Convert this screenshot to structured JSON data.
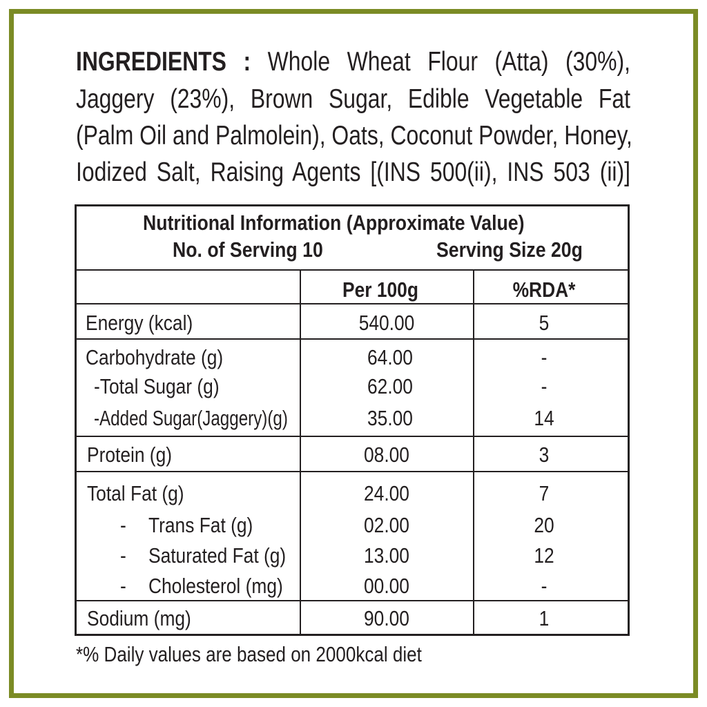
{
  "ingredients": {
    "label": "INGREDIENTS :",
    "lines": [
      "Whole Wheat Flour (Atta) (30%),",
      "Jaggery (23%), Brown Sugar, Edible Vegetable Fat",
      "(Palm Oil and Palmolein), Oats, Coconut Powder, Honey,",
      "Iodized Salt, Raising Agents [(INS 500(ii), INS 503 (ii)]"
    ]
  },
  "table": {
    "title": "Nutritional Information (Approximate Value)",
    "servings": "No. of Serving 10",
    "serving_size": "Serving Size 20g",
    "columns": [
      "",
      "Per 100g",
      "%RDA*"
    ],
    "rows": [
      {
        "name": "Energy (kcal)",
        "per100g": "540.00",
        "rda": "5"
      },
      {
        "name": "Carbohydrate (g)",
        "per100g": "64.00",
        "rda": "-"
      },
      {
        "name": "-Total Sugar (g)",
        "per100g": "62.00",
        "rda": "-"
      },
      {
        "name": "-Added Sugar(Jaggery)(g)",
        "per100g": "35.00",
        "rda": "14"
      },
      {
        "name": "Protein (g)",
        "per100g": "08.00",
        "rda": "3"
      },
      {
        "name": "Total Fat (g)",
        "per100g": "24.00",
        "rda": "7"
      },
      {
        "name": "Trans Fat (g)",
        "per100g": "02.00",
        "rda": "20"
      },
      {
        "name": "Saturated Fat (g)",
        "per100g": "13.00",
        "rda": "12"
      },
      {
        "name": "Cholesterol (mg)",
        "per100g": "00.00",
        "rda": "-"
      },
      {
        "name": "Sodium (mg)",
        "per100g": "90.00",
        "rda": "1"
      }
    ],
    "dash": "-"
  },
  "footnote": "*% Daily values are based on 2000kcal diet",
  "colors": {
    "border": "#7b8b25",
    "text": "#231f20"
  }
}
